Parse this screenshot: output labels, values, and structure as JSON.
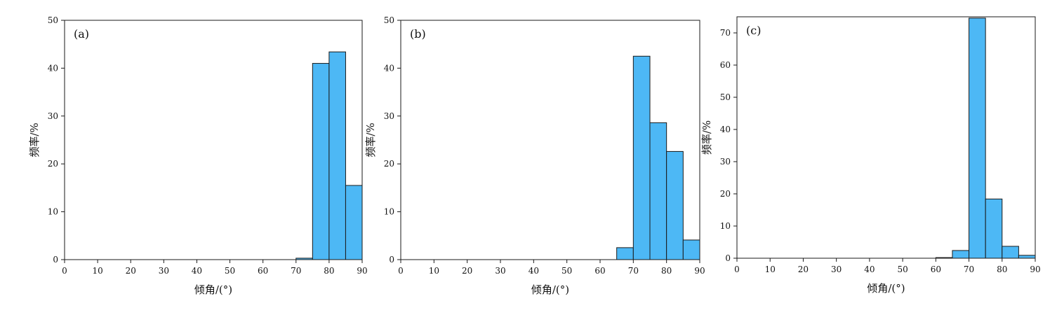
{
  "colors": {
    "bar_fill": "#4db8f5",
    "bar_stroke": "#1a1a1a",
    "axis": "#1a1a1a"
  },
  "chart_data": [
    {
      "type": "bar",
      "panel_label": "(a)",
      "xlabel": "倾角/(°)",
      "ylabel": "频率/%",
      "xlim": [
        0,
        90
      ],
      "ylim": [
        0,
        50
      ],
      "xticks": [
        0,
        10,
        20,
        30,
        40,
        50,
        60,
        70,
        80,
        90
      ],
      "yticks": [
        0,
        10,
        20,
        30,
        40,
        50
      ],
      "bin_width": 5,
      "bins": [
        {
          "x0": 70,
          "x1": 75,
          "value": 0.3
        },
        {
          "x0": 75,
          "x1": 80,
          "value": 41
        },
        {
          "x0": 80,
          "x1": 85,
          "value": 43.4
        },
        {
          "x0": 85,
          "x1": 90,
          "value": 15.5
        }
      ],
      "grid": false
    },
    {
      "type": "bar",
      "panel_label": "(b)",
      "xlabel": "倾角/(°)",
      "ylabel": "频率/%",
      "xlim": [
        0,
        90
      ],
      "ylim": [
        0,
        50
      ],
      "xticks": [
        0,
        10,
        20,
        30,
        40,
        50,
        60,
        70,
        80,
        90
      ],
      "yticks": [
        0,
        10,
        20,
        30,
        40,
        50
      ],
      "bin_width": 5,
      "bins": [
        {
          "x0": 65,
          "x1": 70,
          "value": 2.5
        },
        {
          "x0": 70,
          "x1": 75,
          "value": 42.5
        },
        {
          "x0": 75,
          "x1": 80,
          "value": 28.6
        },
        {
          "x0": 80,
          "x1": 85,
          "value": 22.6
        },
        {
          "x0": 85,
          "x1": 90,
          "value": 4.1
        }
      ],
      "grid": false
    },
    {
      "type": "bar",
      "panel_label": "(c)",
      "xlabel": "倾角/(°)",
      "ylabel": "频率/%",
      "xlim": [
        0,
        90
      ],
      "ylim": [
        0,
        75
      ],
      "xticks": [
        0,
        10,
        20,
        30,
        40,
        50,
        60,
        70,
        80,
        90
      ],
      "yticks": [
        0,
        10,
        20,
        30,
        40,
        50,
        60,
        70
      ],
      "bin_width": 5,
      "bins": [
        {
          "x0": 60,
          "x1": 65,
          "value": 0.2
        },
        {
          "x0": 65,
          "x1": 70,
          "value": 2.4
        },
        {
          "x0": 70,
          "x1": 75,
          "value": 74.6
        },
        {
          "x0": 75,
          "x1": 80,
          "value": 18.4
        },
        {
          "x0": 80,
          "x1": 85,
          "value": 3.7
        },
        {
          "x0": 85,
          "x1": 90,
          "value": 0.9
        }
      ],
      "grid": false
    }
  ]
}
